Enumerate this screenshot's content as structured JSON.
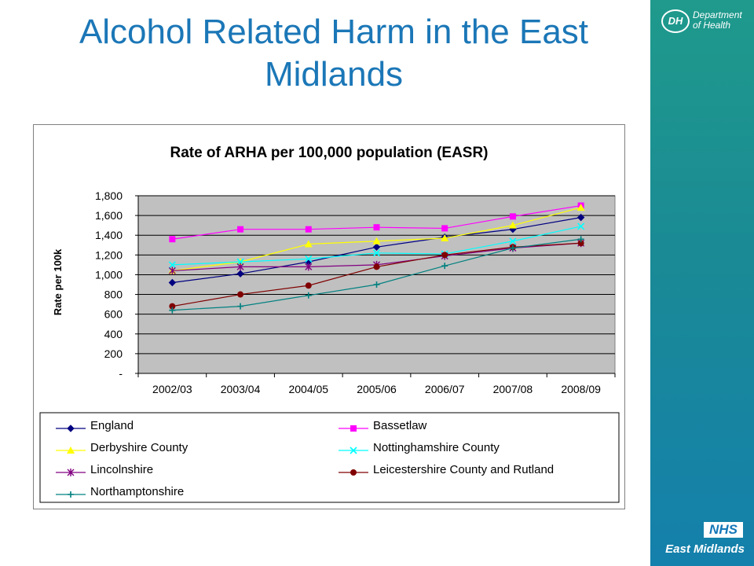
{
  "slide": {
    "title": "Alcohol Related Harm in the East Midlands"
  },
  "branding": {
    "dh_mark": "DH",
    "dh_line1": "Department",
    "dh_line2": "of Health",
    "nhs_mark": "NHS",
    "nhs_region": "East Midlands",
    "sidebar_color": "#1a8a95"
  },
  "chart_data": {
    "type": "line",
    "title": "Rate of ARHA per 100,000 population (EASR)",
    "xlabel": "",
    "ylabel": "Rate per 100k",
    "categories": [
      "2002/03",
      "2003/04",
      "2004/05",
      "2005/06",
      "2006/07",
      "2007/08",
      "2008/09"
    ],
    "ylim": [
      0,
      1800
    ],
    "yticks": [
      0,
      200,
      400,
      600,
      800,
      1000,
      1200,
      1400,
      1600,
      1800
    ],
    "ytick_labels": [
      "-",
      "200",
      "400",
      "600",
      "800",
      "1,000",
      "1,200",
      "1,400",
      "1,600",
      "1,800"
    ],
    "grid": true,
    "plot_background": "#c0c0c0",
    "legend_position": "bottom",
    "series": [
      {
        "name": "England",
        "color": "#000080",
        "marker": "diamond",
        "values": [
          920,
          1010,
          1130,
          1280,
          1380,
          1460,
          1580
        ]
      },
      {
        "name": "Bassetlaw",
        "color": "#ff00ff",
        "marker": "square",
        "values": [
          1360,
          1460,
          1460,
          1480,
          1470,
          1590,
          1700
        ]
      },
      {
        "name": "Derbyshire County",
        "color": "#ffff00",
        "marker": "triangle",
        "values": [
          1040,
          1130,
          1310,
          1340,
          1370,
          1500,
          1680
        ]
      },
      {
        "name": "Nottinghamshire County",
        "color": "#00ffff",
        "marker": "x",
        "values": [
          1100,
          1130,
          1160,
          1220,
          1210,
          1340,
          1490
        ]
      },
      {
        "name": "Lincolnshire",
        "color": "#800080",
        "marker": "star",
        "values": [
          1040,
          1080,
          1080,
          1100,
          1190,
          1270,
          1320
        ]
      },
      {
        "name": "Leicestershire County and Rutland",
        "color": "#800000",
        "marker": "circle",
        "values": [
          680,
          800,
          890,
          1080,
          1200,
          1280,
          1320
        ]
      },
      {
        "name": "Northamptonshire",
        "color": "#008080",
        "marker": "plus",
        "values": [
          640,
          680,
          790,
          900,
          1090,
          1270,
          1360
        ]
      }
    ]
  }
}
